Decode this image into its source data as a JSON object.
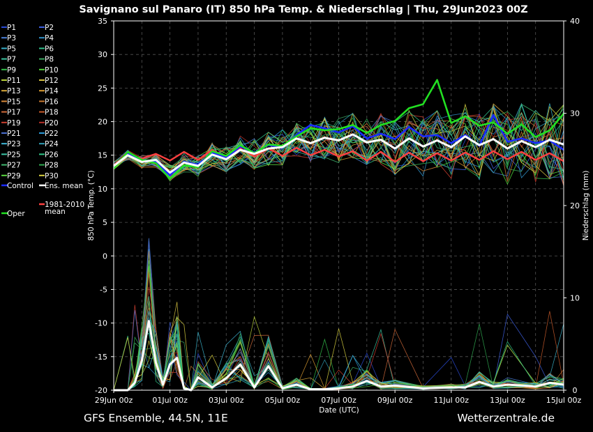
{
  "chart_data": {
    "type": "line",
    "title": "Savignano sul Panaro  (IT)  850 hPa Temp. & Niederschlag | Thu, 29Jun2023 00Z",
    "xlabel": "Date (UTC)",
    "ylabel_left": "850 hPa Temp. (°C)",
    "ylabel_right": "Niederschlag (mm)",
    "ylim_left": [
      -20,
      35
    ],
    "ylim_right": [
      0,
      40
    ],
    "yticks_left": [
      "35",
      "30",
      "25",
      "20",
      "15",
      "10",
      "5",
      "0",
      "-5",
      "-10",
      "-15",
      "-20"
    ],
    "yticks_right": [
      "40",
      "30",
      "20",
      "10",
      "0"
    ],
    "xticks": [
      "29Jun 00z",
      "01Jul 00z",
      "03Jul 00z",
      "05Jul 00z",
      "07Jul 00z",
      "09Jul 00z",
      "11Jul 00z",
      "13Jul 00z",
      "15Jul 00z"
    ],
    "xlim_days": [
      0,
      16
    ],
    "footer_left": "GFS Ensemble, 44.5N, 11E",
    "footer_right": "Wetterzentrale.de",
    "legend": [
      {
        "label": "P1",
        "color": "#2a4bd7"
      },
      {
        "label": "P2",
        "color": "#3d5fe0"
      },
      {
        "label": "P3",
        "color": "#4a7fd8"
      },
      {
        "label": "P4",
        "color": "#2f8fc7"
      },
      {
        "label": "P5",
        "color": "#38b0c8"
      },
      {
        "label": "P6",
        "color": "#2fc08a"
      },
      {
        "label": "P7",
        "color": "#3cc4a0"
      },
      {
        "label": "P8",
        "color": "#3aa860"
      },
      {
        "label": "P9",
        "color": "#33c04a"
      },
      {
        "label": "P10",
        "color": "#4ed23a"
      },
      {
        "label": "P11",
        "color": "#b8d03a"
      },
      {
        "label": "P12",
        "color": "#d4c040"
      },
      {
        "label": "P13",
        "color": "#d8a83a"
      },
      {
        "label": "P14",
        "color": "#d89a30"
      },
      {
        "label": "P15",
        "color": "#d88a3a"
      },
      {
        "label": "P16",
        "color": "#c87830"
      },
      {
        "label": "P17",
        "color": "#d06a3a"
      },
      {
        "label": "P18",
        "color": "#c85a2a"
      },
      {
        "label": "P19",
        "color": "#d04030"
      },
      {
        "label": "P20",
        "color": "#b83028"
      },
      {
        "label": "P21",
        "color": "#4a6fd0"
      },
      {
        "label": "P22",
        "color": "#2a9ad8"
      },
      {
        "label": "P23",
        "color": "#40b8d8"
      },
      {
        "label": "P24",
        "color": "#30a0b8"
      },
      {
        "label": "P25",
        "color": "#3cc8a8"
      },
      {
        "label": "P26",
        "color": "#30c888"
      },
      {
        "label": "P27",
        "color": "#40b870"
      },
      {
        "label": "P28",
        "color": "#2fa850"
      },
      {
        "label": "P29",
        "color": "#5ad840"
      },
      {
        "label": "P30",
        "color": "#d8d040"
      }
    ],
    "legend_control": {
      "label": "Control",
      "color": "#1a2bff"
    },
    "legend_mean": {
      "label": "Ens. mean",
      "color": "#ffffff"
    },
    "legend_clim": {
      "label": "1981-2010 mean",
      "color": "#ff4040"
    },
    "legend_oper": {
      "label": "Oper",
      "color": "#22e022"
    },
    "series": [
      {
        "name": "Ens. mean",
        "color": "#ffffff",
        "x": [
          0,
          0.5,
          1,
          1.5,
          2,
          2.5,
          3,
          3.5,
          4,
          4.5,
          5,
          5.5,
          6,
          6.5,
          7,
          7.5,
          8,
          8.5,
          9,
          9.5,
          10,
          10.5,
          11,
          11.5,
          12,
          12.5,
          13,
          13.5,
          14,
          14.5,
          15,
          15.5,
          16
        ],
        "y": [
          13.4,
          15.0,
          14.0,
          14.3,
          12.4,
          13.9,
          13.4,
          15.1,
          14.4,
          15.8,
          15.2,
          16.0,
          16.2,
          17.5,
          16.8,
          17.6,
          17.2,
          18.1,
          16.9,
          17.3,
          16.0,
          17.5,
          16.3,
          17.2,
          16.2,
          17.8,
          16.5,
          17.4,
          16.0,
          17.1,
          16.2,
          17.3,
          16.6
        ]
      },
      {
        "name": "Control",
        "color": "#1a2bff",
        "x": [
          0,
          0.5,
          1,
          1.5,
          2,
          2.5,
          3,
          3.5,
          4,
          4.5,
          5,
          5.5,
          6,
          6.5,
          7,
          7.5,
          8,
          8.5,
          9,
          9.5,
          10,
          10.5,
          11,
          11.5,
          12,
          12.5,
          13,
          13.5,
          14,
          14.5,
          15,
          15.5,
          16
        ],
        "y": [
          13.2,
          15.2,
          14.2,
          14.0,
          12.0,
          14.0,
          13.6,
          15.4,
          14.6,
          16.3,
          15.4,
          16.5,
          16.1,
          18.0,
          19.5,
          19.0,
          18.4,
          19.3,
          17.5,
          18.2,
          17.4,
          19.2,
          17.8,
          18.0,
          16.8,
          18.0,
          16.4,
          21.0,
          17.0,
          17.5,
          16.8,
          17.2,
          15.8
        ]
      },
      {
        "name": "Oper",
        "color": "#22e022",
        "x": [
          0,
          0.5,
          1,
          1.5,
          2,
          2.5,
          3,
          3.5,
          4,
          4.5,
          5,
          5.5,
          6,
          6.5,
          7,
          7.5,
          8,
          8.5,
          9,
          9.5,
          10,
          10.5,
          11,
          11.5,
          12,
          12.5,
          13,
          13.5,
          14,
          14.5,
          15,
          15.5,
          16
        ],
        "y": [
          13.0,
          15.5,
          14.3,
          13.8,
          11.5,
          13.5,
          13.2,
          15.6,
          14.9,
          16.5,
          15.3,
          16.6,
          16.4,
          17.8,
          19.0,
          18.7,
          18.9,
          19.5,
          18.3,
          19.5,
          20.1,
          22.0,
          22.6,
          26.2,
          19.8,
          20.8,
          19.4,
          19.9,
          18.2,
          19.6,
          17.7,
          18.7,
          21.2
        ]
      },
      {
        "name": "1981-2010 mean",
        "color": "#ff4040",
        "x": [
          0,
          0.5,
          1,
          1.5,
          2,
          2.5,
          3,
          3.5,
          4,
          4.5,
          5,
          5.5,
          6,
          6.5,
          7,
          7.5,
          8,
          8.5,
          9,
          9.5,
          10,
          10.5,
          11,
          11.5,
          12,
          12.5,
          13,
          13.5,
          14,
          14.5,
          15,
          15.5,
          16
        ],
        "y": [
          13.5,
          15.0,
          14.5,
          15.2,
          14.2,
          15.5,
          14.3,
          15.8,
          14.6,
          16.0,
          14.8,
          16.0,
          14.9,
          16.1,
          15.0,
          15.8,
          14.8,
          15.6,
          14.2,
          15.5,
          14.0,
          15.4,
          14.1,
          15.3,
          14.2,
          15.4,
          14.3,
          15.6,
          14.4,
          15.5,
          14.3,
          15.3,
          14.1
        ]
      },
      {
        "name": "Niederschlag mean",
        "color": "#ffffff",
        "axis": "right",
        "x": [
          0,
          0.5,
          0.75,
          1,
          1.25,
          1.5,
          1.75,
          2,
          2.25,
          2.5,
          2.75,
          3,
          3.5,
          4,
          4.5,
          5,
          5.5,
          6,
          6.5,
          7,
          7.5,
          8,
          8.5,
          9,
          9.5,
          10,
          11,
          12,
          12.5,
          13,
          13.5,
          14,
          15,
          15.5,
          16
        ],
        "y": [
          0,
          0,
          0.8,
          3.2,
          7.5,
          3.0,
          0.6,
          2.8,
          3.5,
          0.2,
          0,
          1.4,
          0.3,
          1.3,
          2.8,
          0.3,
          2.6,
          0.2,
          0.6,
          0.1,
          0.1,
          0.2,
          0.4,
          1.0,
          0.4,
          0.5,
          0.2,
          0.3,
          0.3,
          0.9,
          0.4,
          0.6,
          0.4,
          0.8,
          0.6
        ]
      }
    ]
  }
}
